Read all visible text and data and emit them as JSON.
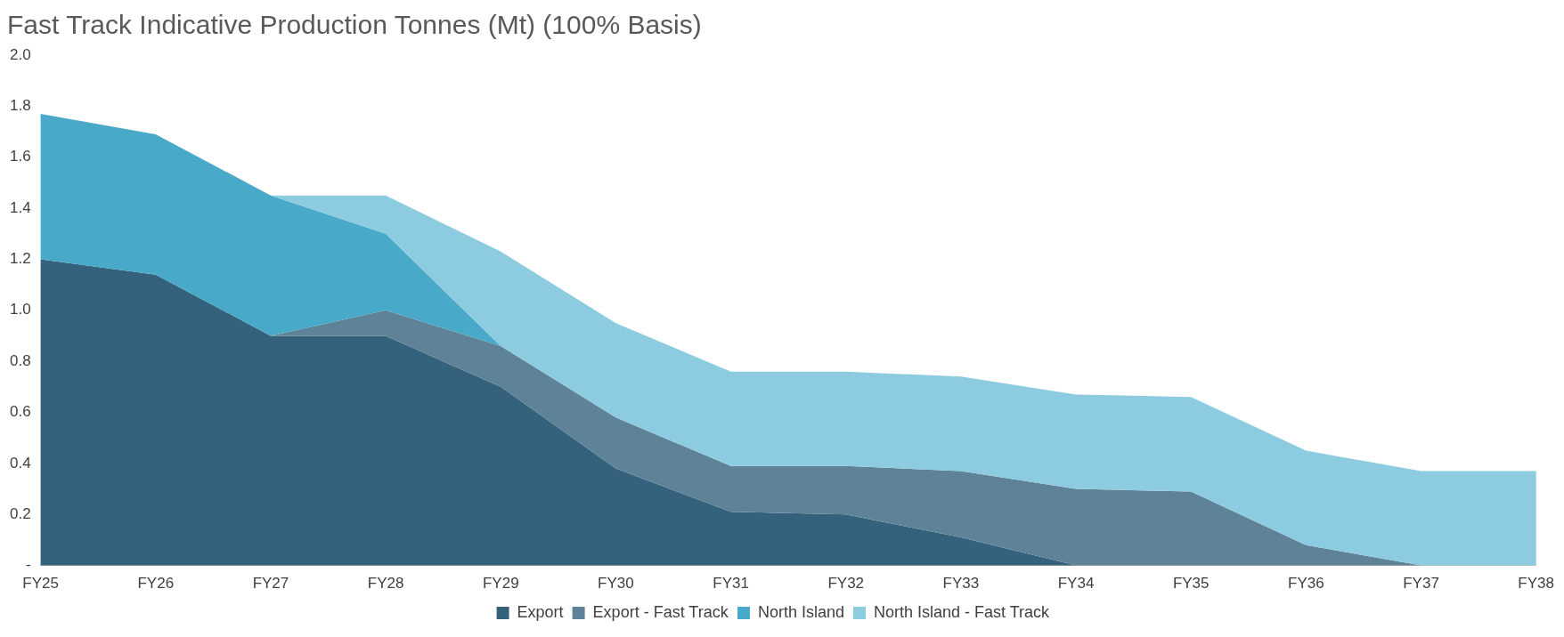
{
  "chart_data": {
    "type": "area",
    "title": "Fast Track Indicative Production Tonnes (Mt) (100% Basis)",
    "stacked": true,
    "categories": [
      "FY25",
      "FY26",
      "FY27",
      "FY28",
      "FY29",
      "FY30",
      "FY31",
      "FY32",
      "FY33",
      "FY34",
      "FY35",
      "FY36",
      "FY37",
      "FY38"
    ],
    "series": [
      {
        "name": "Export",
        "color": "#34627c",
        "values": [
          1.2,
          1.14,
          0.9,
          0.9,
          0.7,
          0.38,
          0.21,
          0.2,
          0.11,
          0,
          null,
          null,
          null,
          null
        ]
      },
      {
        "name": "Export - Fast Track",
        "color": "#5e8398",
        "values": [
          null,
          null,
          0,
          0.1,
          0.16,
          0.2,
          0.18,
          0.19,
          0.26,
          0.3,
          0.29,
          0.08,
          0,
          null
        ]
      },
      {
        "name": "North Island",
        "color": "#48a9c8",
        "values": [
          0.57,
          0.55,
          0.55,
          0.3,
          0,
          null,
          null,
          null,
          null,
          null,
          null,
          null,
          null,
          null
        ]
      },
      {
        "name": "North Island - Fast Track",
        "color": "#8ccbe0",
        "values": [
          null,
          null,
          0,
          0.15,
          0.37,
          0.37,
          0.37,
          0.37,
          0.37,
          0.37,
          0.37,
          0.37,
          0.37,
          0.37
        ]
      }
    ],
    "ylim": [
      0,
      2
    ],
    "yticks": [
      {
        "value": 0,
        "label": "-"
      },
      {
        "value": 0.2,
        "label": "0.2"
      },
      {
        "value": 0.4,
        "label": "0.4"
      },
      {
        "value": 0.6,
        "label": "0.6"
      },
      {
        "value": 0.8,
        "label": "0.8"
      },
      {
        "value": 1,
        "label": "1.0"
      },
      {
        "value": 1.2,
        "label": "1.2"
      },
      {
        "value": 1.4,
        "label": "1.4"
      },
      {
        "value": 1.6,
        "label": "1.6"
      },
      {
        "value": 1.8,
        "label": "1.8"
      },
      {
        "value": 2,
        "label": "2.0"
      }
    ],
    "grid": false,
    "legend": "bottom"
  }
}
